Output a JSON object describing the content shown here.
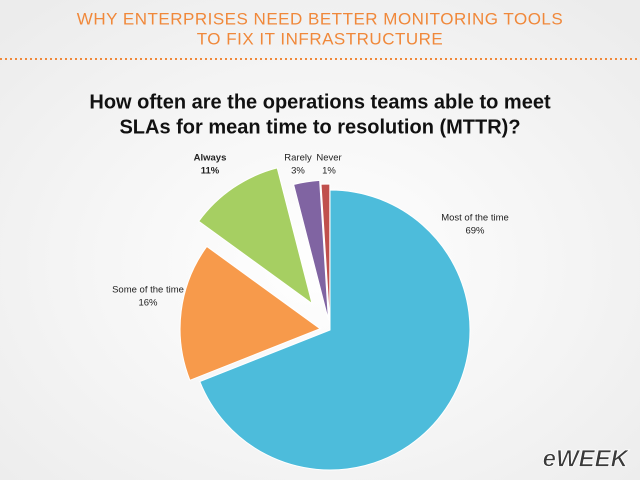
{
  "header": {
    "title_lines": [
      "WHY ENTERPRISES NEED BETTER MONITORING TOOLS",
      "TO FIX IT INFRASTRUCTURE"
    ]
  },
  "chart_data": {
    "type": "pie",
    "title_lines": [
      "How often are the operations teams able to meet",
      "SLAs for mean time to resolution (MTTR)?"
    ],
    "categories": [
      "Most of the time",
      "Some of the time",
      "Always",
      "Rarely",
      "Never"
    ],
    "values": [
      69,
      16,
      11,
      3,
      1
    ],
    "value_labels": [
      "69%",
      "16%",
      "11%",
      "3%",
      "1%"
    ],
    "colors": [
      "#4dbcdb",
      "#f79a4b",
      "#a6cf62",
      "#8064a2",
      "#c0504d"
    ]
  },
  "logo": "eWEEK"
}
